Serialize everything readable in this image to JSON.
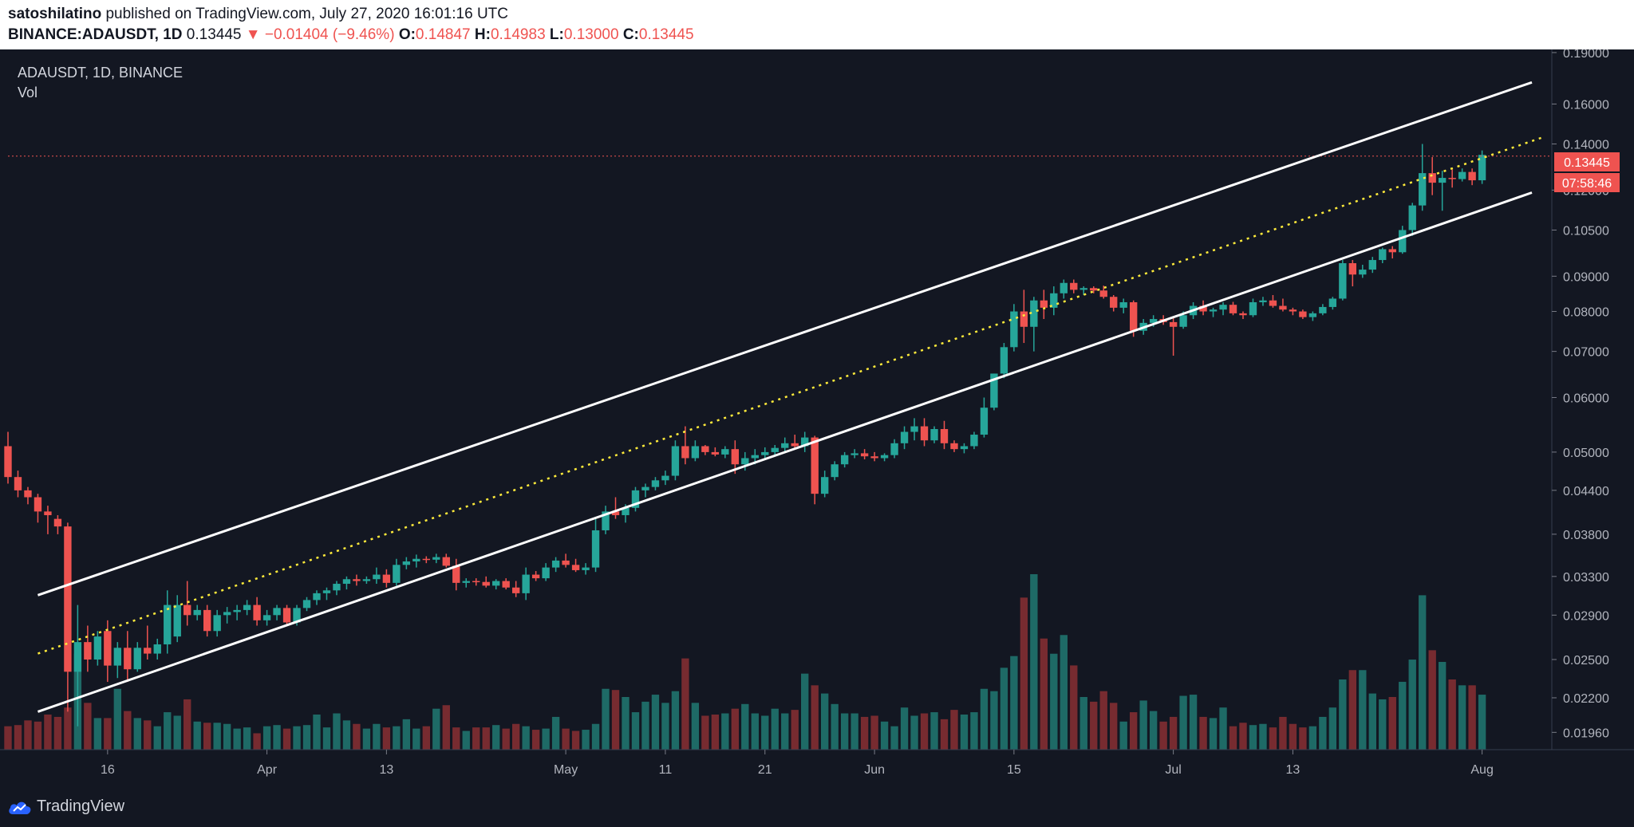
{
  "header": {
    "author": "satoshilatino",
    "published_text": "published on TradingView.com, July 27, 2020 16:01:16 UTC",
    "symbol": "BINANCE:ADAUSDT, 1D",
    "last": "0.13445",
    "change": "▼ −0.01404 (−9.46%)",
    "o_label": "O:",
    "o_val": "0.14847",
    "h_label": "H:",
    "h_val": "0.14983",
    "l_label": "L:",
    "l_val": "0.13000",
    "c_label": "C:",
    "c_val": "0.13445"
  },
  "legend": {
    "title": "ADAUSDT, 1D, BINANCE",
    "vol": "Vol"
  },
  "price_badge": {
    "price": "0.13445",
    "countdown": "07:58:46"
  },
  "footer": {
    "brand": "TradingView"
  },
  "colors": {
    "up": "#26a69a",
    "down": "#ef5350",
    "background": "#131722",
    "channel": "#ffffff",
    "midline": "#ffeb3b"
  },
  "chart_data": {
    "type": "candlestick",
    "title": "ADAUSDT, 1D, BINANCE",
    "scale": "log",
    "ylim": [
      0.0185,
      0.192
    ],
    "y_ticks": [
      "0.19000",
      "0.16000",
      "0.14000",
      "0.12000",
      "0.10500",
      "0.09000",
      "0.08000",
      "0.07000",
      "0.06000",
      "0.05000",
      "0.04400",
      "0.03800",
      "0.03300",
      "0.02900",
      "0.02500",
      "0.02200",
      "0.01960"
    ],
    "x_ticks": [
      "16",
      "Apr",
      "13",
      "May",
      "11",
      "21",
      "Jun",
      "15",
      "Jul",
      "13",
      "Aug"
    ],
    "x_tick_dates": [
      "2020-03-16",
      "2020-04-01",
      "2020-04-13",
      "2020-05-01",
      "2020-05-11",
      "2020-05-21",
      "2020-06-01",
      "2020-06-15",
      "2020-07-01",
      "2020-07-13",
      "2020-08-01"
    ],
    "x_range": [
      "2020-03-06",
      "2020-08-08"
    ],
    "last_price": 0.13445,
    "ohlcv": [
      [
        "2020-03-06",
        0.051,
        0.0535,
        0.045,
        0.046,
        20
      ],
      [
        "2020-03-07",
        0.046,
        0.047,
        0.043,
        0.044,
        21
      ],
      [
        "2020-03-08",
        0.044,
        0.0445,
        0.042,
        0.043,
        25
      ],
      [
        "2020-03-09",
        0.043,
        0.0435,
        0.0395,
        0.041,
        24
      ],
      [
        "2020-03-10",
        0.041,
        0.0418,
        0.038,
        0.0405,
        30
      ],
      [
        "2020-03-11",
        0.04,
        0.0405,
        0.038,
        0.039,
        28
      ],
      [
        "2020-03-12",
        0.039,
        0.0395,
        0.021,
        0.024,
        36
      ],
      [
        "2020-03-13",
        0.024,
        0.03,
        0.02,
        0.0265,
        82
      ],
      [
        "2020-03-14",
        0.0265,
        0.028,
        0.024,
        0.025,
        40
      ],
      [
        "2020-03-15",
        0.025,
        0.0275,
        0.0245,
        0.027,
        27
      ],
      [
        "2020-03-16",
        0.0275,
        0.0285,
        0.0232,
        0.0245,
        27
      ],
      [
        "2020-03-17",
        0.0245,
        0.0265,
        0.0235,
        0.026,
        52
      ],
      [
        "2020-03-18",
        0.026,
        0.0275,
        0.0232,
        0.0242,
        33
      ],
      [
        "2020-03-19",
        0.0242,
        0.0265,
        0.024,
        0.026,
        27
      ],
      [
        "2020-03-20",
        0.026,
        0.028,
        0.025,
        0.0255,
        25
      ],
      [
        "2020-03-21",
        0.0255,
        0.0268,
        0.025,
        0.0263,
        20
      ],
      [
        "2020-03-22",
        0.0263,
        0.0315,
        0.0255,
        0.03,
        32
      ],
      [
        "2020-03-23",
        0.027,
        0.031,
        0.0265,
        0.03,
        29
      ],
      [
        "2020-03-24",
        0.03,
        0.0325,
        0.028,
        0.029,
        43
      ],
      [
        "2020-03-25",
        0.029,
        0.03,
        0.0285,
        0.0295,
        24
      ],
      [
        "2020-03-26",
        0.0295,
        0.03,
        0.027,
        0.0275,
        23
      ],
      [
        "2020-03-27",
        0.0275,
        0.0295,
        0.027,
        0.029,
        23
      ],
      [
        "2020-03-28",
        0.029,
        0.0298,
        0.0282,
        0.0293,
        22
      ],
      [
        "2020-03-29",
        0.0293,
        0.03,
        0.0285,
        0.0295,
        18
      ],
      [
        "2020-03-30",
        0.0295,
        0.0305,
        0.029,
        0.03,
        19
      ],
      [
        "2020-03-31",
        0.03,
        0.0308,
        0.028,
        0.0285,
        14
      ],
      [
        "2020-04-01",
        0.0285,
        0.0295,
        0.028,
        0.029,
        20
      ],
      [
        "2020-04-02",
        0.029,
        0.03,
        0.0285,
        0.0297,
        21
      ],
      [
        "2020-04-03",
        0.0297,
        0.03,
        0.028,
        0.0283,
        18
      ],
      [
        "2020-04-04",
        0.0283,
        0.03,
        0.028,
        0.0297,
        20
      ],
      [
        "2020-04-05",
        0.0297,
        0.0308,
        0.0294,
        0.0305,
        21
      ],
      [
        "2020-04-06",
        0.0305,
        0.0315,
        0.03,
        0.0312,
        30
      ],
      [
        "2020-04-07",
        0.0312,
        0.0318,
        0.0305,
        0.0315,
        19
      ],
      [
        "2020-04-08",
        0.0315,
        0.0325,
        0.031,
        0.0322,
        31
      ],
      [
        "2020-04-09",
        0.0322,
        0.033,
        0.0316,
        0.0327,
        25
      ],
      [
        "2020-04-10",
        0.0327,
        0.0332,
        0.032,
        0.0325,
        22
      ],
      [
        "2020-04-11",
        0.0325,
        0.033,
        0.0322,
        0.0327,
        18
      ],
      [
        "2020-04-12",
        0.0327,
        0.034,
        0.0322,
        0.0332,
        22
      ],
      [
        "2020-04-13",
        0.0332,
        0.0338,
        0.0318,
        0.0323,
        19
      ],
      [
        "2020-04-14",
        0.0323,
        0.035,
        0.032,
        0.0343,
        20
      ],
      [
        "2020-04-15",
        0.0343,
        0.0352,
        0.0338,
        0.0347,
        26
      ],
      [
        "2020-04-16",
        0.0347,
        0.0355,
        0.034,
        0.035,
        18
      ],
      [
        "2020-04-17",
        0.035,
        0.0353,
        0.0345,
        0.0349,
        20
      ],
      [
        "2020-04-18",
        0.0349,
        0.0356,
        0.0345,
        0.0352,
        35
      ],
      [
        "2020-04-19",
        0.0352,
        0.0356,
        0.034,
        0.0342,
        38
      ],
      [
        "2020-04-20",
        0.0342,
        0.035,
        0.0315,
        0.0323,
        19
      ],
      [
        "2020-04-21",
        0.0323,
        0.0328,
        0.0318,
        0.0325,
        16
      ],
      [
        "2020-04-22",
        0.0325,
        0.0328,
        0.032,
        0.0324,
        19
      ],
      [
        "2020-04-23",
        0.0324,
        0.033,
        0.0318,
        0.032,
        19
      ],
      [
        "2020-04-24",
        0.032,
        0.0327,
        0.0316,
        0.0325,
        21
      ],
      [
        "2020-04-25",
        0.0325,
        0.0328,
        0.0316,
        0.0318,
        18
      ],
      [
        "2020-04-26",
        0.0318,
        0.0325,
        0.0308,
        0.0312,
        22
      ],
      [
        "2020-04-27",
        0.0312,
        0.034,
        0.0305,
        0.0332,
        20
      ],
      [
        "2020-04-28",
        0.0332,
        0.0336,
        0.0325,
        0.0328,
        17
      ],
      [
        "2020-04-29",
        0.0328,
        0.0345,
        0.0325,
        0.034,
        18
      ],
      [
        "2020-04-30",
        0.034,
        0.0352,
        0.0335,
        0.0348,
        28
      ],
      [
        "2020-05-01",
        0.0348,
        0.0356,
        0.034,
        0.0343,
        18
      ],
      [
        "2020-05-02",
        0.0343,
        0.035,
        0.0335,
        0.0337,
        16
      ],
      [
        "2020-05-03",
        0.0337,
        0.0345,
        0.0332,
        0.034,
        17
      ],
      [
        "2020-05-04",
        0.034,
        0.04,
        0.0335,
        0.0385,
        22
      ],
      [
        "2020-05-05",
        0.0385,
        0.0418,
        0.038,
        0.041,
        52
      ],
      [
        "2020-05-06",
        0.041,
        0.043,
        0.04,
        0.0405,
        51
      ],
      [
        "2020-05-07",
        0.0405,
        0.042,
        0.0395,
        0.0415,
        45
      ],
      [
        "2020-05-08",
        0.0415,
        0.0445,
        0.041,
        0.044,
        32
      ],
      [
        "2020-05-09",
        0.044,
        0.045,
        0.043,
        0.0445,
        41
      ],
      [
        "2020-05-10",
        0.0445,
        0.046,
        0.044,
        0.0455,
        47
      ],
      [
        "2020-05-11",
        0.0455,
        0.047,
        0.0448,
        0.0462,
        40
      ],
      [
        "2020-05-12",
        0.0462,
        0.052,
        0.0455,
        0.051,
        50
      ],
      [
        "2020-05-13",
        0.051,
        0.0545,
        0.048,
        0.049,
        78
      ],
      [
        "2020-05-14",
        0.049,
        0.052,
        0.0485,
        0.051,
        40
      ],
      [
        "2020-05-15",
        0.051,
        0.0512,
        0.0495,
        0.05,
        29
      ],
      [
        "2020-05-16",
        0.05,
        0.0508,
        0.0493,
        0.0496,
        30
      ],
      [
        "2020-05-17",
        0.0496,
        0.051,
        0.049,
        0.0505,
        31
      ],
      [
        "2020-05-18",
        0.0505,
        0.052,
        0.0465,
        0.048,
        35
      ],
      [
        "2020-05-19",
        0.048,
        0.05,
        0.047,
        0.049,
        39
      ],
      [
        "2020-05-20",
        0.049,
        0.0505,
        0.048,
        0.0495,
        31
      ],
      [
        "2020-05-21",
        0.0495,
        0.0508,
        0.0488,
        0.05,
        29
      ],
      [
        "2020-05-22",
        0.05,
        0.0512,
        0.0493,
        0.0507,
        35
      ],
      [
        "2020-05-23",
        0.0507,
        0.0525,
        0.05,
        0.0515,
        31
      ],
      [
        "2020-05-24",
        0.0515,
        0.053,
        0.0505,
        0.051,
        34
      ],
      [
        "2020-05-25",
        0.051,
        0.0535,
        0.05,
        0.0525,
        65
      ],
      [
        "2020-05-26",
        0.0525,
        0.0528,
        0.042,
        0.0435,
        55
      ],
      [
        "2020-05-27",
        0.0435,
        0.047,
        0.043,
        0.046,
        48
      ],
      [
        "2020-05-28",
        0.046,
        0.0485,
        0.0455,
        0.048,
        39
      ],
      [
        "2020-05-29",
        0.048,
        0.05,
        0.0475,
        0.0495,
        31
      ],
      [
        "2020-05-30",
        0.0495,
        0.0505,
        0.049,
        0.0498,
        31
      ],
      [
        "2020-05-31",
        0.0498,
        0.0505,
        0.0488,
        0.0493,
        28
      ],
      [
        "2020-06-01",
        0.0493,
        0.05,
        0.0485,
        0.049,
        29
      ],
      [
        "2020-06-02",
        0.049,
        0.0498,
        0.0485,
        0.0495,
        24
      ],
      [
        "2020-06-03",
        0.0495,
        0.0522,
        0.049,
        0.0515,
        20
      ],
      [
        "2020-06-04",
        0.0515,
        0.0545,
        0.0505,
        0.0535,
        36
      ],
      [
        "2020-06-05",
        0.0535,
        0.056,
        0.052,
        0.0545,
        29
      ],
      [
        "2020-06-06",
        0.0545,
        0.056,
        0.051,
        0.052,
        31
      ],
      [
        "2020-06-07",
        0.052,
        0.0545,
        0.0515,
        0.054,
        32
      ],
      [
        "2020-06-08",
        0.054,
        0.0555,
        0.0505,
        0.0515,
        26
      ],
      [
        "2020-06-09",
        0.0515,
        0.052,
        0.05,
        0.0505,
        34
      ],
      [
        "2020-06-10",
        0.0505,
        0.0515,
        0.0498,
        0.051,
        30
      ],
      [
        "2020-06-11",
        0.051,
        0.0535,
        0.0505,
        0.053,
        32
      ],
      [
        "2020-06-12",
        0.053,
        0.06,
        0.0525,
        0.058,
        52
      ],
      [
        "2020-06-13",
        0.058,
        0.065,
        0.0575,
        0.065,
        50
      ],
      [
        "2020-06-14",
        0.065,
        0.072,
        0.064,
        0.071,
        70
      ],
      [
        "2020-06-15",
        0.071,
        0.082,
        0.07,
        0.08,
        80
      ],
      [
        "2020-06-16",
        0.08,
        0.086,
        0.072,
        0.076,
        130
      ],
      [
        "2020-06-17",
        0.076,
        0.084,
        0.07,
        0.083,
        150
      ],
      [
        "2020-06-18",
        0.083,
        0.086,
        0.078,
        0.081,
        95
      ],
      [
        "2020-06-19",
        0.081,
        0.087,
        0.079,
        0.085,
        82
      ],
      [
        "2020-06-20",
        0.085,
        0.089,
        0.0835,
        0.088,
        98
      ],
      [
        "2020-06-21",
        0.088,
        0.089,
        0.085,
        0.086,
        72
      ],
      [
        "2020-06-22",
        0.086,
        0.087,
        0.0845,
        0.0865,
        45
      ],
      [
        "2020-06-23",
        0.0865,
        0.087,
        0.085,
        0.0858,
        41
      ],
      [
        "2020-06-24",
        0.0858,
        0.0872,
        0.0835,
        0.084,
        50
      ],
      [
        "2020-06-25",
        0.084,
        0.0845,
        0.08,
        0.081,
        40
      ],
      [
        "2020-06-26",
        0.081,
        0.0835,
        0.0795,
        0.0825,
        24
      ],
      [
        "2020-06-27",
        0.0825,
        0.083,
        0.0735,
        0.075,
        32
      ],
      [
        "2020-06-28",
        0.075,
        0.078,
        0.074,
        0.077,
        42
      ],
      [
        "2020-06-29",
        0.077,
        0.079,
        0.076,
        0.078,
        33
      ],
      [
        "2020-06-30",
        0.078,
        0.079,
        0.0765,
        0.0772,
        24
      ],
      [
        "2020-07-01",
        0.0772,
        0.0785,
        0.069,
        0.076,
        28
      ],
      [
        "2020-07-02",
        0.076,
        0.08,
        0.0755,
        0.079,
        46
      ],
      [
        "2020-07-03",
        0.079,
        0.0825,
        0.078,
        0.0815,
        47
      ],
      [
        "2020-07-04",
        0.0815,
        0.083,
        0.079,
        0.08,
        28
      ],
      [
        "2020-07-05",
        0.08,
        0.081,
        0.0785,
        0.0805,
        27
      ],
      [
        "2020-07-06",
        0.0805,
        0.0825,
        0.079,
        0.0818,
        36
      ],
      [
        "2020-07-07",
        0.0818,
        0.0826,
        0.079,
        0.0795,
        20
      ],
      [
        "2020-07-08",
        0.0795,
        0.08,
        0.078,
        0.079,
        23
      ],
      [
        "2020-07-09",
        0.079,
        0.0835,
        0.0785,
        0.0825,
        21
      ],
      [
        "2020-07-10",
        0.0825,
        0.084,
        0.0815,
        0.083,
        22
      ],
      [
        "2020-07-11",
        0.083,
        0.0845,
        0.081,
        0.0815,
        19
      ],
      [
        "2020-07-12",
        0.0815,
        0.0835,
        0.08,
        0.0805,
        28
      ],
      [
        "2020-07-13",
        0.0805,
        0.081,
        0.079,
        0.08,
        22
      ],
      [
        "2020-07-14",
        0.08,
        0.0805,
        0.078,
        0.0785,
        19
      ],
      [
        "2020-07-15",
        0.0785,
        0.08,
        0.0775,
        0.0795,
        20
      ],
      [
        "2020-07-16",
        0.0795,
        0.082,
        0.079,
        0.0812,
        28
      ],
      [
        "2020-07-17",
        0.0812,
        0.084,
        0.0805,
        0.0835,
        36
      ],
      [
        "2020-07-18",
        0.0835,
        0.095,
        0.083,
        0.094,
        60
      ],
      [
        "2020-07-19",
        0.094,
        0.095,
        0.087,
        0.0905,
        68
      ],
      [
        "2020-07-20",
        0.0905,
        0.0935,
        0.0895,
        0.092,
        68
      ],
      [
        "2020-07-21",
        0.092,
        0.096,
        0.091,
        0.095,
        48
      ],
      [
        "2020-07-22",
        0.095,
        0.099,
        0.094,
        0.0985,
        43
      ],
      [
        "2020-07-23",
        0.0985,
        0.0995,
        0.0955,
        0.0975,
        45
      ],
      [
        "2020-07-24",
        0.0975,
        0.1065,
        0.097,
        0.105,
        58
      ],
      [
        "2020-07-25",
        0.105,
        0.115,
        0.103,
        0.114,
        77
      ],
      [
        "2020-07-26",
        0.114,
        0.14,
        0.112,
        0.127,
        132
      ],
      [
        "2020-07-27",
        0.127,
        0.134,
        0.118,
        0.123,
        85
      ],
      [
        "2020-07-28",
        0.123,
        0.128,
        0.112,
        0.125,
        75
      ],
      [
        "2020-07-29",
        0.125,
        0.1285,
        0.121,
        0.1245,
        60
      ],
      [
        "2020-07-30",
        0.1245,
        0.129,
        0.1235,
        0.1275,
        55
      ],
      [
        "2020-07-31",
        0.1275,
        0.129,
        0.122,
        0.124,
        55
      ],
      [
        "2020-08-01",
        0.124,
        0.137,
        0.1225,
        0.135,
        47
      ]
    ]
  }
}
